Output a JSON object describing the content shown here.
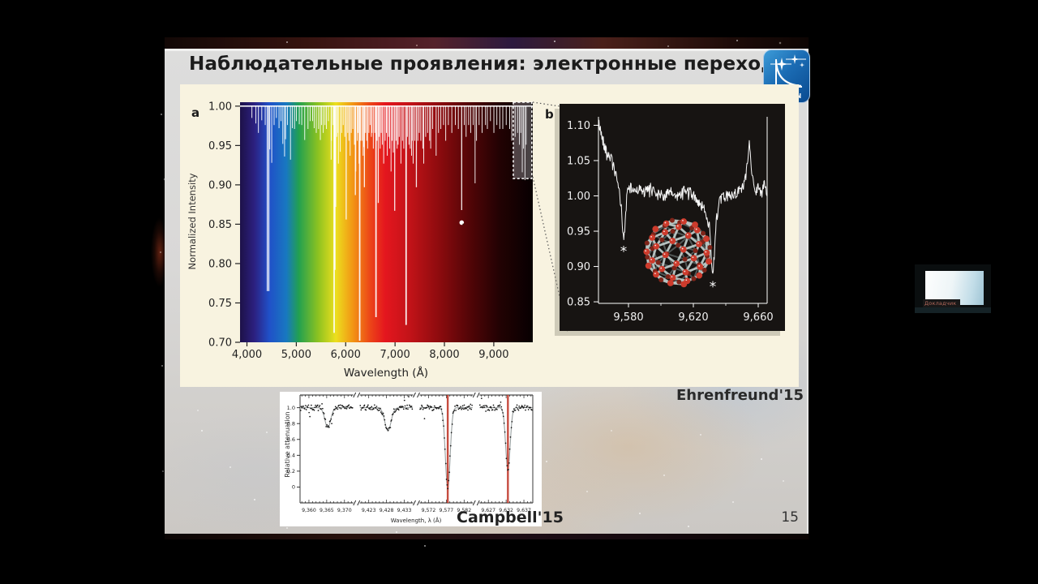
{
  "slide": {
    "title": "Наблюдательные проявления: электронные переходы",
    "logo_text": "INASAN",
    "citation_top": "Ehrenfreund'15",
    "citation_bottom": "Campbell'15",
    "page_number": "15"
  },
  "video_overlay": {
    "label": "Докладчик"
  },
  "chart_data": [
    {
      "id": "dib-spectrum-overview",
      "panel_label": "a",
      "type": "line",
      "xlabel": "Wavelength  (Å)",
      "ylabel": "Normalized Intensity",
      "xlim": [
        3860,
        9790
      ],
      "ylim": [
        0.7,
        1.005
      ],
      "xticks": [
        {
          "value": 4000,
          "label": "4,000"
        },
        {
          "value": 5000,
          "label": "5,000"
        },
        {
          "value": 6000,
          "label": "6,000"
        },
        {
          "value": 7000,
          "label": "7,000"
        },
        {
          "value": 8000,
          "label": "8,000"
        },
        {
          "value": 9000,
          "label": "9,000"
        }
      ],
      "yticks": [
        {
          "value": 1.0,
          "label": "1.00"
        },
        {
          "value": 0.95,
          "label": "0.95"
        },
        {
          "value": 0.9,
          "label": "0.90"
        },
        {
          "value": 0.85,
          "label": "0.85"
        },
        {
          "value": 0.8,
          "label": "0.80"
        },
        {
          "value": 0.75,
          "label": "0.75"
        },
        {
          "value": 0.7,
          "label": "0.70"
        }
      ],
      "background_spectrum": [
        [
          3860,
          "#1d1148"
        ],
        [
          4150,
          "#2c2080"
        ],
        [
          4450,
          "#2050c8"
        ],
        [
          4800,
          "#1878c0"
        ],
        [
          5050,
          "#22a050"
        ],
        [
          5450,
          "#8fc320"
        ],
        [
          5800,
          "#ecdf1e"
        ],
        [
          6150,
          "#f29414"
        ],
        [
          6500,
          "#ec4418"
        ],
        [
          6800,
          "#e4161e"
        ],
        [
          7300,
          "#c21318"
        ],
        [
          7900,
          "#8c0b0e"
        ],
        [
          8500,
          "#530507"
        ],
        [
          9100,
          "#230203"
        ],
        [
          9790,
          "#070001"
        ]
      ],
      "continuum": 1.0,
      "marker_dot": {
        "x": 8350,
        "y": 0.852
      },
      "zoom_box": {
        "x": [
          9395,
          9770
        ],
        "y": [
          0.908,
          1.005
        ],
        "note": "region enlarged in panel b"
      },
      "absorption_lines": [
        [
          4100,
          0.985
        ],
        [
          4180,
          0.978
        ],
        [
          4232,
          0.966
        ],
        [
          4300,
          0.982
        ],
        [
          4370,
          0.976
        ],
        [
          4428,
          0.765
        ],
        [
          4462,
          0.945
        ],
        [
          4502,
          0.928
        ],
        [
          4550,
          0.976
        ],
        [
          4596,
          0.985
        ],
        [
          4650,
          0.972
        ],
        [
          4690,
          0.981
        ],
        [
          4727,
          0.952
        ],
        [
          4762,
          0.936
        ],
        [
          4782,
          0.958
        ],
        [
          4820,
          0.976
        ],
        [
          4882,
          0.932
        ],
        [
          4920,
          0.972
        ],
        [
          4964,
          0.971
        ],
        [
          5002,
          0.981
        ],
        [
          5060,
          0.977
        ],
        [
          5110,
          0.976
        ],
        [
          5170,
          0.957
        ],
        [
          5236,
          0.971
        ],
        [
          5280,
          0.981
        ],
        [
          5330,
          0.981
        ],
        [
          5362,
          0.972
        ],
        [
          5404,
          0.966
        ],
        [
          5450,
          0.971
        ],
        [
          5487,
          0.957
        ],
        [
          5512,
          0.976
        ],
        [
          5545,
          0.966
        ],
        [
          5580,
          0.976
        ],
        [
          5610,
          0.971
        ],
        [
          5650,
          0.981
        ],
        [
          5705,
          0.932
        ],
        [
          5711,
          0.956
        ],
        [
          5745,
          0.976
        ],
        [
          5766,
          0.712
        ],
        [
          5780,
          0.792
        ],
        [
          5797,
          0.872
        ],
        [
          5820,
          0.961
        ],
        [
          5844,
          0.966
        ],
        [
          5852,
          0.927
        ],
        [
          5890,
          0.942
        ],
        [
          5920,
          0.966
        ],
        [
          5950,
          0.976
        ],
        [
          5982,
          0.961
        ],
        [
          6010,
          0.856
        ],
        [
          6042,
          0.966
        ],
        [
          6065,
          0.956
        ],
        [
          6090,
          0.937
        ],
        [
          6113,
          0.966
        ],
        [
          6145,
          0.971
        ],
        [
          6177,
          0.951
        ],
        [
          6196,
          0.887
        ],
        [
          6205,
          0.917
        ],
        [
          6234,
          0.956
        ],
        [
          6252,
          0.966
        ],
        [
          6270,
          0.927
        ],
        [
          6284,
          0.702
        ],
        [
          6302,
          0.956
        ],
        [
          6330,
          0.956
        ],
        [
          6353,
          0.937
        ],
        [
          6368,
          0.948
        ],
        [
          6379,
          0.897
        ],
        [
          6402,
          0.966
        ],
        [
          6425,
          0.956
        ],
        [
          6445,
          0.946
        ],
        [
          6470,
          0.966
        ],
        [
          6495,
          0.976
        ],
        [
          6520,
          0.961
        ],
        [
          6533,
          0.966
        ],
        [
          6560,
          0.946
        ],
        [
          6590,
          0.966
        ],
        [
          6614,
          0.732
        ],
        [
          6635,
          0.956
        ],
        [
          6660,
          0.877
        ],
        [
          6680,
          0.961
        ],
        [
          6699,
          0.946
        ],
        [
          6720,
          0.966
        ],
        [
          6742,
          0.951
        ],
        [
          6770,
          0.927
        ],
        [
          6800,
          0.956
        ],
        [
          6825,
          0.966
        ],
        [
          6843,
          0.937
        ],
        [
          6870,
          0.961
        ],
        [
          6890,
          0.946
        ],
        [
          6919,
          0.917
        ],
        [
          6940,
          0.956
        ],
        [
          6965,
          0.941
        ],
        [
          6993,
          0.867
        ],
        [
          7020,
          0.956
        ],
        [
          7042,
          0.946
        ],
        [
          7062,
          0.951
        ],
        [
          7085,
          0.961
        ],
        [
          7119,
          0.927
        ],
        [
          7150,
          0.956
        ],
        [
          7177,
          0.946
        ],
        [
          7224,
          0.722
        ],
        [
          7250,
          0.961
        ],
        [
          7282,
          0.951
        ],
        [
          7308,
          0.946
        ],
        [
          7334,
          0.937
        ],
        [
          7357,
          0.956
        ],
        [
          7367,
          0.927
        ],
        [
          7400,
          0.956
        ],
        [
          7432,
          0.897
        ],
        [
          7462,
          0.956
        ],
        [
          7490,
          0.966
        ],
        [
          7522,
          0.956
        ],
        [
          7562,
          0.946
        ],
        [
          7581,
          0.927
        ],
        [
          7620,
          0.961
        ],
        [
          7660,
          0.966
        ],
        [
          7700,
          0.956
        ],
        [
          7722,
          0.946
        ],
        [
          7762,
          0.971
        ],
        [
          7832,
          0.937
        ],
        [
          7880,
          0.966
        ],
        [
          7927,
          0.971
        ],
        [
          7982,
          0.976
        ],
        [
          8026,
          0.956
        ],
        [
          8080,
          0.976
        ],
        [
          8150,
          0.966
        ],
        [
          8222,
          0.976
        ],
        [
          8282,
          0.971
        ],
        [
          8350,
          0.868
        ],
        [
          8402,
          0.976
        ],
        [
          8439,
          0.961
        ],
        [
          8490,
          0.976
        ],
        [
          8532,
          0.966
        ],
        [
          8582,
          0.976
        ],
        [
          8621,
          0.902
        ],
        [
          8650,
          0.956
        ],
        [
          8702,
          0.976
        ],
        [
          8763,
          0.966
        ],
        [
          8832,
          0.976
        ],
        [
          8870,
          0.971
        ],
        [
          8932,
          0.981
        ],
        [
          9002,
          0.966
        ],
        [
          9062,
          0.976
        ],
        [
          9122,
          0.971
        ],
        [
          9182,
          0.971
        ],
        [
          9252,
          0.976
        ],
        [
          9322,
          0.971
        ],
        [
          9365,
          0.956
        ],
        [
          9433,
          0.961
        ],
        [
          9482,
          0.966
        ],
        [
          9520,
          0.951
        ],
        [
          9547,
          0.966
        ],
        [
          9577,
          0.916
        ],
        [
          9602,
          0.946
        ],
        [
          9632,
          0.906
        ],
        [
          9656,
          0.951
        ]
      ]
    },
    {
      "id": "c60-dib-zoom",
      "panel_label": "b",
      "type": "line",
      "xlim": [
        9561.5,
        9665.5
      ],
      "ylim": [
        0.8478,
        1.112
      ],
      "xticks": [
        {
          "value": 9580,
          "label": "9,580"
        },
        {
          "value": 9620,
          "label": "9,620"
        },
        {
          "value": 9660,
          "label": "9,660"
        }
      ],
      "minor_xticks": [
        9600,
        9640
      ],
      "yticks": [
        {
          "value": 1.1,
          "label": "1.10"
        },
        {
          "value": 1.05,
          "label": "1.05"
        },
        {
          "value": 1.0,
          "label": "1.00"
        },
        {
          "value": 0.95,
          "label": "0.95"
        },
        {
          "value": 0.9,
          "label": "0.90"
        },
        {
          "value": 0.85,
          "label": "0.85"
        }
      ],
      "line_color": "#ffffff",
      "noise_amplitude": 0.0075,
      "anchors": [
        [
          9561.5,
          1.105
        ],
        [
          9563,
          1.09
        ],
        [
          9565,
          1.072
        ],
        [
          9567,
          1.06
        ],
        [
          9569,
          1.055
        ],
        [
          9571,
          1.04
        ],
        [
          9572.5,
          1.025
        ],
        [
          9574,
          1.01
        ],
        [
          9575.5,
          0.985
        ],
        [
          9577,
          0.937
        ],
        [
          9578,
          0.96
        ],
        [
          9579,
          1.002
        ],
        [
          9580.5,
          1.012
        ],
        [
          9583,
          1.008
        ],
        [
          9586,
          1.01
        ],
        [
          9590,
          1.005
        ],
        [
          9594,
          1.012
        ],
        [
          9598,
          1.002
        ],
        [
          9602,
          1.0
        ],
        [
          9606,
          1.005
        ],
        [
          9610,
          0.998
        ],
        [
          9614,
          1.008
        ],
        [
          9618,
          1.004
        ],
        [
          9621,
          0.998
        ],
        [
          9624,
          0.99
        ],
        [
          9626,
          0.982
        ],
        [
          9628,
          0.975
        ],
        [
          9630,
          0.955
        ],
        [
          9631,
          0.92
        ],
        [
          9632,
          0.887
        ],
        [
          9633,
          0.92
        ],
        [
          9634,
          0.965
        ],
        [
          9636,
          0.99
        ],
        [
          9638,
          0.998
        ],
        [
          9641,
          1.0
        ],
        [
          9645,
          1.002
        ],
        [
          9648,
          1.008
        ],
        [
          9651,
          1.012
        ],
        [
          9653,
          1.035
        ],
        [
          9654.5,
          1.08
        ],
        [
          9656,
          1.03
        ],
        [
          9658,
          1.005
        ],
        [
          9660,
          1.015
        ],
        [
          9662,
          1.0
        ],
        [
          9664,
          1.02
        ],
        [
          9665.5,
          0.99
        ]
      ],
      "asterisks": [
        {
          "x": 9577,
          "y": 0.922
        },
        {
          "x": 9632,
          "y": 0.872
        }
      ],
      "molecule": {
        "name": "C60 fullerene",
        "atom_color": "#cd3b2c",
        "atom_back_color": "#7e2419",
        "bond_color": "#bcc9c7",
        "bond_back_color": "#7f8d8c",
        "atoms": 60
      }
    },
    {
      "id": "c60-lab-comparison",
      "type": "scatter",
      "xlabel": "Wavelength, λ (Å)",
      "ylabel": "Relative attenuation",
      "ylim": [
        -0.2,
        1.16
      ],
      "yticks": [
        {
          "value": 1.0,
          "label": "1.0"
        },
        {
          "value": 0.8,
          "label": "0.8"
        },
        {
          "value": 0.6,
          "label": "0.6"
        },
        {
          "value": 0.4,
          "label": "0.4"
        },
        {
          "value": 0.2,
          "label": "0.2"
        },
        {
          "value": 0,
          "label": "0"
        }
      ],
      "noise_amplitude": 0.035,
      "point_color": "#161616",
      "fit_color": "#9aa0a0",
      "highlight_color": "#c0392b",
      "highlight_lines": [
        9577.4,
        9632.5
      ],
      "segments": [
        {
          "range": [
            9357.5,
            9372.5
          ],
          "ticks": [
            {
              "value": 9360,
              "label": "9,360"
            },
            {
              "value": 9365,
              "label": "9,365"
            },
            {
              "value": 9370,
              "label": "9,370"
            }
          ],
          "dips": [
            {
              "center": 9365.3,
              "depth": 0.25,
              "width": 1.15
            }
          ]
        },
        {
          "range": [
            9420.5,
            9435.5
          ],
          "ticks": [
            {
              "value": 9423,
              "label": "9,423"
            },
            {
              "value": 9428,
              "label": "9,428"
            },
            {
              "value": 9433,
              "label": "9,433"
            }
          ],
          "dips": [
            {
              "center": 9428.4,
              "depth": 0.29,
              "width": 1.25
            }
          ]
        },
        {
          "range": [
            9569.5,
            9584.5
          ],
          "ticks": [
            {
              "value": 9572,
              "label": "9,572"
            },
            {
              "value": 9577,
              "label": "9,577"
            },
            {
              "value": 9582,
              "label": "9,582"
            }
          ],
          "dips": [
            {
              "center": 9577.4,
              "depth": 1.02,
              "width": 0.95
            }
          ]
        },
        {
          "range": [
            9624.5,
            9639.5
          ],
          "ticks": [
            {
              "value": 9627,
              "label": "9,627"
            },
            {
              "value": 9632,
              "label": "9,632"
            },
            {
              "value": 9637,
              "label": "9,637"
            }
          ],
          "dips": [
            {
              "center": 9632.5,
              "depth": 0.78,
              "width": 0.9
            }
          ]
        }
      ]
    }
  ]
}
